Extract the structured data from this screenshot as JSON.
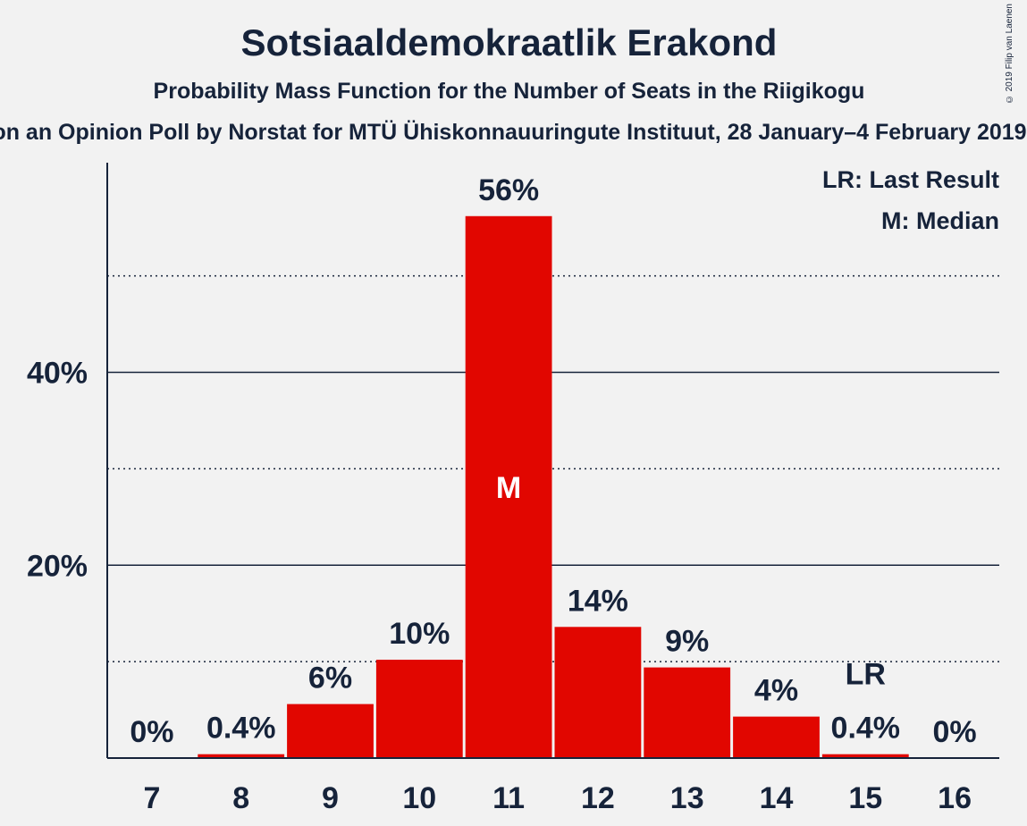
{
  "chart_data": {
    "type": "bar",
    "title": "Sotsiaaldemokraatlik Erakond",
    "subtitle": "Probability Mass Function for the Number of Seats in the Riigikogu",
    "subtitle2": "on an Opinion Poll by Norstat for MTÜ Ühiskonnauuringute Instituut, 28 January–4 February 2019",
    "copyright": "© 2019 Filip van Laenen",
    "categories": [
      "7",
      "8",
      "9",
      "10",
      "11",
      "12",
      "13",
      "14",
      "15",
      "16"
    ],
    "values": [
      0,
      0.4,
      5.6,
      10.2,
      56.2,
      13.6,
      9.4,
      4.3,
      0.4,
      0
    ],
    "data_labels": [
      "0%",
      "0.4%",
      "6%",
      "10%",
      "56%",
      "14%",
      "9%",
      "4%",
      "0.4%",
      "0%"
    ],
    "ylim": [
      0,
      61
    ],
    "y_ticks": [
      {
        "value": 20,
        "label": "20%"
      },
      {
        "value": 40,
        "label": "40%"
      }
    ],
    "minor_gridlines": [
      10,
      30,
      50
    ],
    "median_category": "11",
    "median_marker": "M",
    "last_result_category": "15",
    "last_result_marker": "LR",
    "legend": [
      "LR: Last Result",
      "M: Median"
    ],
    "legend_placement": "top-right",
    "colors": {
      "bar": "#e10600",
      "text": "#16233a",
      "background": "#f2f2f2"
    }
  }
}
